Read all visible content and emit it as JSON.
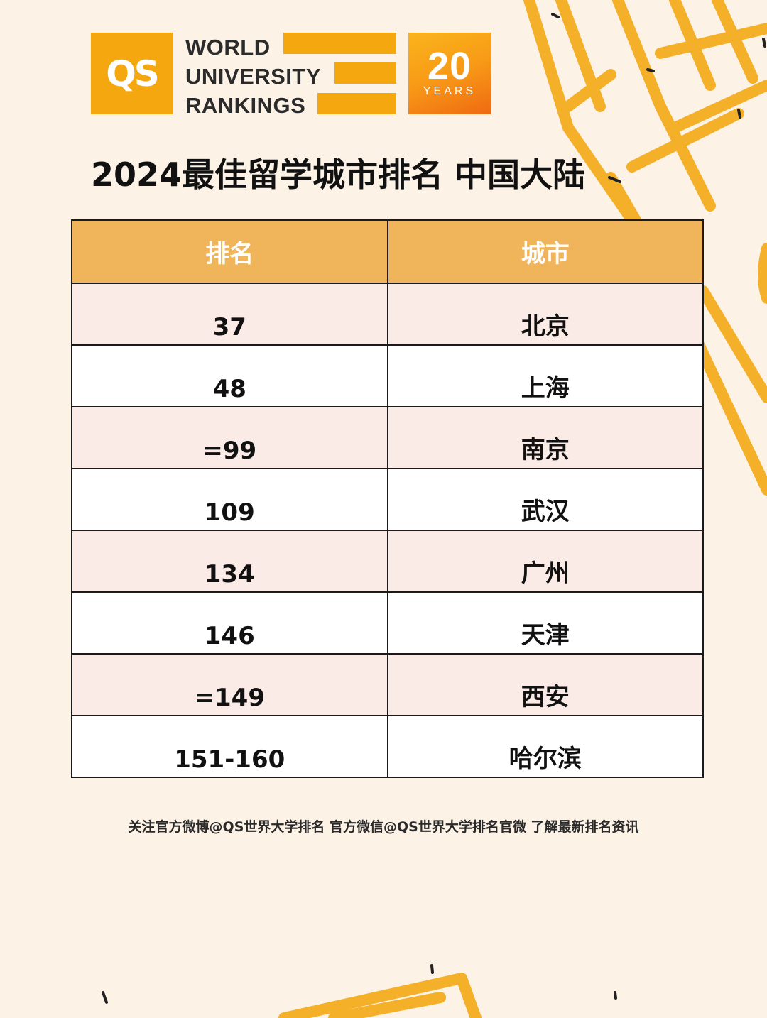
{
  "logo": {
    "qs": "QS",
    "line1": "WORLD",
    "line2": "UNIVERSITY",
    "line3": "RANKINGS",
    "years_number": "20",
    "years_label": "YEARS"
  },
  "title": "2024最佳留学城市排名 中国大陆",
  "table": {
    "headers": [
      "排名",
      "城市"
    ],
    "rows": [
      {
        "rank": "37",
        "city": "北京"
      },
      {
        "rank": "48",
        "city": "上海"
      },
      {
        "rank": "=99",
        "city": "南京"
      },
      {
        "rank": "109",
        "city": "武汉"
      },
      {
        "rank": "134",
        "city": "广州"
      },
      {
        "rank": "146",
        "city": "天津"
      },
      {
        "rank": "=149",
        "city": "西安"
      },
      {
        "rank": "151-160",
        "city": "哈尔滨"
      }
    ]
  },
  "footer": "关注官方微博@QS世界大学排名 官方微信@QS世界大学排名官微 了解最新排名资讯",
  "colors": {
    "background": "#fdf2e6",
    "brand_orange": "#f5a70f",
    "header_fill": "#f0b55b",
    "row_pink": "#fbebe7"
  }
}
